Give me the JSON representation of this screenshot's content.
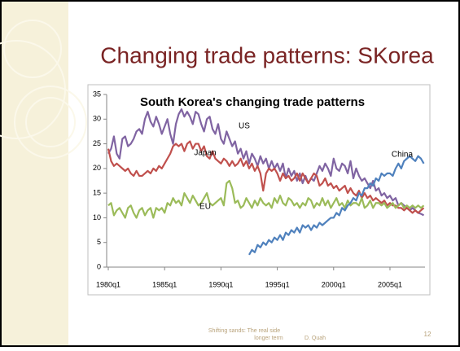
{
  "slide": {
    "title": "Changing trade patterns: SKorea",
    "footer": [
      "Shifting sands: The real side",
      "longer term",
      "D. Quah"
    ],
    "page_number": "12"
  },
  "chart_data": {
    "type": "line",
    "title": "South Korea's changing trade patterns",
    "categories": [
      "1980q1",
      null,
      null,
      null,
      null,
      null,
      null,
      null,
      null,
      null,
      null,
      null,
      null,
      null,
      null,
      null,
      null,
      null,
      null,
      null,
      "1985q1",
      null,
      null,
      null,
      null,
      null,
      null,
      null,
      null,
      null,
      null,
      null,
      null,
      null,
      null,
      null,
      null,
      null,
      null,
      null,
      "1990q1",
      null,
      null,
      null,
      null,
      null,
      null,
      null,
      null,
      null,
      null,
      null,
      null,
      null,
      null,
      null,
      null,
      null,
      null,
      null,
      "1995q1",
      null,
      null,
      null,
      null,
      null,
      null,
      null,
      null,
      null,
      null,
      null,
      null,
      null,
      null,
      null,
      null,
      null,
      null,
      null,
      "2000q1",
      null,
      null,
      null,
      null,
      null,
      null,
      null,
      null,
      null,
      null,
      null,
      null,
      null,
      null,
      null,
      null,
      null,
      null,
      null,
      "2005q1",
      null,
      null,
      null,
      null,
      null,
      null,
      null,
      null,
      null,
      null,
      null,
      null
    ],
    "ylim": [
      0,
      35
    ],
    "yticks": [
      0,
      5,
      10,
      15,
      20,
      25,
      30,
      35
    ],
    "grid": false,
    "series": [
      {
        "name": "US",
        "color": "#8064a2",
        "values": [
          23,
          24,
          26.5,
          23,
          22,
          26,
          26.5,
          24.5,
          25,
          26,
          27.5,
          28,
          27,
          30,
          31.5,
          29.5,
          28.5,
          30.5,
          29,
          27,
          28.5,
          30,
          27,
          25,
          29,
          31,
          32,
          30.5,
          31.5,
          30.5,
          29,
          31.5,
          31,
          29,
          27.5,
          30,
          30.5,
          28,
          27,
          29,
          26,
          25,
          27.5,
          26,
          24.5,
          25.5,
          23,
          24,
          22,
          23.5,
          21,
          23,
          22,
          20.5,
          22.5,
          21,
          22,
          20,
          21.5,
          20,
          21,
          19.5,
          21,
          18,
          20,
          18.5,
          19.5,
          17.5,
          19,
          17,
          18.5,
          17,
          18,
          17.5,
          19,
          20.5,
          19.5,
          21,
          20,
          18.5,
          22,
          20,
          19.5,
          21,
          20.5,
          19,
          21.5,
          18,
          20,
          18.5,
          17.5,
          18,
          17,
          16,
          17.5,
          15.5,
          16,
          14.5,
          15,
          14,
          14.5,
          13.5,
          14,
          12.5,
          13,
          12.5,
          12,
          11.5,
          12,
          11.5,
          11,
          10.8,
          10.5
        ]
      },
      {
        "name": "Japan",
        "color": "#c0504d",
        "values": [
          24,
          21.5,
          20.5,
          21,
          20.5,
          20,
          19.5,
          20,
          19,
          18.5,
          19.5,
          18.5,
          18.5,
          19,
          19.5,
          19,
          20,
          19.5,
          20.5,
          20,
          21,
          22,
          23,
          24.5,
          25,
          24.5,
          25,
          23.5,
          25,
          25.5,
          24,
          25,
          25,
          23.5,
          24.5,
          22.5,
          22,
          23.5,
          22,
          21.5,
          21,
          22,
          21.5,
          20.5,
          21.5,
          20.5,
          21,
          22,
          20.5,
          21.5,
          20,
          21,
          19.5,
          20.5,
          19,
          15.5,
          19,
          20,
          19.5,
          20,
          19,
          17.5,
          19,
          18,
          18.5,
          17.5,
          18,
          19,
          17.5,
          19,
          18,
          17,
          18,
          19,
          18.5,
          16.5,
          17,
          18,
          16.5,
          17,
          16,
          16.5,
          15.5,
          16,
          16.5,
          15,
          16,
          15,
          14.5,
          15.5,
          14,
          15,
          14,
          14.5,
          13.5,
          14,
          13.5,
          13,
          13.5,
          12.5,
          13,
          12.5,
          12.5,
          12,
          12,
          11.5,
          12,
          11.5,
          11,
          11.5,
          11,
          11.5,
          12
        ]
      },
      {
        "name": "EU",
        "color": "#9bbb59",
        "values": [
          12.5,
          13,
          10.5,
          11.5,
          12,
          11,
          10,
          12,
          12.5,
          11,
          10,
          11.5,
          12,
          10.5,
          11.5,
          12,
          10,
          12,
          11.5,
          12,
          11,
          13,
          12.5,
          14,
          13,
          13.5,
          12.5,
          15,
          14,
          13,
          14.5,
          13.5,
          12.5,
          13,
          14,
          15,
          13,
          12.5,
          13,
          13.5,
          14,
          12.5,
          17,
          17.5,
          16,
          13,
          13.5,
          12,
          12.5,
          14,
          13,
          12,
          13.5,
          12.5,
          14,
          13,
          12.5,
          13,
          12,
          14,
          13,
          14.5,
          13,
          12.5,
          14,
          13.5,
          12.5,
          13,
          12,
          13,
          12.5,
          14,
          13.5,
          12,
          13,
          12.5,
          14,
          12.5,
          13.5,
          12,
          13,
          14,
          12.5,
          13,
          12,
          13.5,
          12.5,
          13,
          13,
          12.5,
          14,
          12,
          12.5,
          13.5,
          12,
          13,
          13,
          12.5,
          13,
          12,
          12.5,
          13,
          12,
          12.5,
          13,
          12,
          12.5,
          12,
          12.5,
          12,
          12.5,
          12,
          12.5
        ]
      },
      {
        "name": "China",
        "color": "#4f81bd",
        "values": [
          null,
          null,
          null,
          null,
          null,
          null,
          null,
          null,
          null,
          null,
          null,
          null,
          null,
          null,
          null,
          null,
          null,
          null,
          null,
          null,
          null,
          null,
          null,
          null,
          null,
          null,
          null,
          null,
          null,
          null,
          null,
          null,
          null,
          null,
          null,
          null,
          null,
          null,
          null,
          null,
          null,
          null,
          null,
          null,
          null,
          null,
          null,
          null,
          null,
          null,
          2.5,
          3.5,
          3,
          4.5,
          4,
          5,
          4.5,
          5.5,
          5,
          6,
          5.5,
          6.5,
          5.5,
          7,
          6.5,
          7.5,
          7,
          8,
          7,
          8.5,
          8,
          8.5,
          7.5,
          8.5,
          8,
          9,
          8.5,
          9,
          9.5,
          10,
          10,
          11,
          10.5,
          12,
          11.5,
          12.5,
          13,
          14,
          13.5,
          15,
          14.5,
          16,
          16,
          17,
          16.5,
          18,
          17.5,
          19,
          18.5,
          19,
          19,
          18.5,
          20,
          21,
          20,
          21.5,
          22,
          22.5,
          22,
          21.5,
          22.5,
          22,
          21
        ]
      }
    ],
    "annotations": [
      "US",
      "Japan",
      "EU",
      "China"
    ]
  }
}
